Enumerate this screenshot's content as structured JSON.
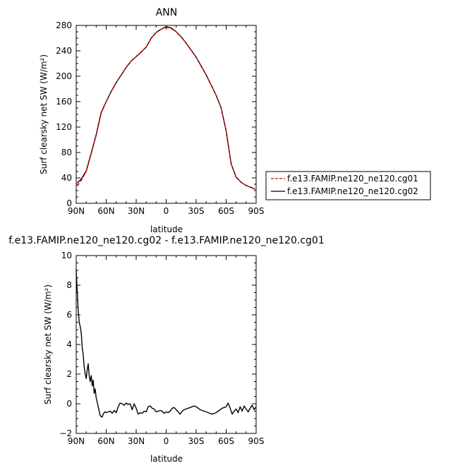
{
  "chart_data": [
    {
      "type": "line",
      "title": "ANN",
      "xlabel": "latitude",
      "ylabel": "Surf clearsky net SW (W/m²)",
      "xlim": [
        90,
        -90
      ],
      "x_direction": "90N on left to 90S on right",
      "ylim": [
        0,
        280
      ],
      "xticks": [
        90,
        60,
        30,
        0,
        -30,
        -60,
        -90
      ],
      "xtick_labels": [
        "90N",
        "60N",
        "30N",
        "0",
        "30S",
        "60S",
        "90S"
      ],
      "yticks": [
        0,
        40,
        80,
        120,
        160,
        200,
        240,
        280
      ],
      "ytick_labels": [
        "0",
        "40",
        "80",
        "120",
        "160",
        "200",
        "240",
        "280"
      ],
      "legend_position": "right",
      "series": [
        {
          "name": "f.e13.FAMIP.ne120_ne120.cg01",
          "color": "#cc0000",
          "dash": "dashed",
          "x": [
            89,
            85,
            80,
            75,
            70,
            65,
            60,
            55,
            50,
            45,
            40,
            35,
            30,
            25,
            20,
            15,
            10,
            5,
            0,
            -5,
            -10,
            -15,
            -20,
            -25,
            -30,
            -35,
            -40,
            -45,
            -50,
            -55,
            -60,
            -65,
            -70,
            -72,
            -75,
            -80,
            -85,
            -89
          ],
          "y": [
            27,
            36,
            50,
            78,
            107,
            142,
            160,
            176,
            190,
            202,
            214,
            224,
            231,
            238,
            246,
            260,
            269,
            274,
            277,
            275,
            270,
            262,
            252,
            241,
            230,
            216,
            202,
            186,
            170,
            150,
            114,
            62,
            41,
            38,
            33,
            28,
            25,
            22
          ]
        },
        {
          "name": "f.e13.FAMIP.ne120_ne120.cg02",
          "color": "#000000",
          "dash": "solid",
          "x": [
            89,
            85,
            80,
            75,
            70,
            65,
            60,
            55,
            50,
            45,
            40,
            35,
            30,
            25,
            20,
            15,
            10,
            5,
            0,
            -5,
            -10,
            -15,
            -20,
            -25,
            -30,
            -35,
            -40,
            -45,
            -50,
            -55,
            -60,
            -65,
            -70,
            -72,
            -75,
            -80,
            -85,
            -89
          ],
          "y": [
            32,
            38,
            51,
            79,
            108,
            143,
            160,
            176,
            190,
            202,
            214,
            224,
            231,
            238,
            246,
            260,
            269,
            274,
            278,
            276,
            270,
            262,
            252,
            241,
            230,
            216,
            202,
            186,
            170,
            150,
            114,
            62,
            41,
            38,
            33,
            28,
            25,
            22
          ]
        }
      ]
    },
    {
      "type": "line",
      "title": "f.e13.FAMIP.ne120_ne120.cg02 - f.e13.FAMIP.ne120_ne120.cg01",
      "xlabel": "latitude",
      "ylabel": "Surf clearsky net SW (W/m²)",
      "xlim": [
        90,
        -90
      ],
      "ylim": [
        -2,
        10
      ],
      "xticks": [
        90,
        60,
        30,
        0,
        -30,
        -60,
        -90
      ],
      "xtick_labels": [
        "90N",
        "60N",
        "30N",
        "0",
        "30S",
        "60S",
        "90S"
      ],
      "yticks": [
        -2,
        0,
        2,
        4,
        6,
        8,
        10
      ],
      "ytick_labels": [
        "−2",
        "0",
        "2",
        "4",
        "6",
        "8",
        "10"
      ],
      "series": [
        {
          "color": "#000000",
          "dash": "solid",
          "x": [
            90,
            89,
            88,
            87,
            86,
            85,
            84,
            83,
            82,
            81,
            80,
            79,
            78,
            77,
            76,
            75,
            74,
            73,
            72,
            71,
            70,
            69,
            68,
            67,
            66,
            65,
            64,
            63,
            62,
            61,
            60,
            58,
            56,
            54,
            52,
            50,
            48,
            46,
            44,
            42,
            40,
            38,
            36,
            34,
            32,
            30,
            28,
            26,
            24,
            22,
            20,
            18,
            16,
            14,
            12,
            10,
            8,
            6,
            4,
            2,
            0,
            -2,
            -4,
            -6,
            -8,
            -10,
            -12,
            -14,
            -16,
            -18,
            -20,
            -22,
            -24,
            -26,
            -28,
            -30,
            -32,
            -34,
            -36,
            -38,
            -40,
            -42,
            -44,
            -46,
            -48,
            -50,
            -52,
            -54,
            -56,
            -58,
            -60,
            -62,
            -64,
            -66,
            -68,
            -70,
            -72,
            -74,
            -76,
            -78,
            -80,
            -82,
            -84,
            -86,
            -88,
            -90
          ],
          "y": [
            9.0,
            7.6,
            6.3,
            5.5,
            5.2,
            4.8,
            3.8,
            3.3,
            2.5,
            2.0,
            1.7,
            2.3,
            2.7,
            1.9,
            1.5,
            1.9,
            1.2,
            1.6,
            0.7,
            1.0,
            0.4,
            0.1,
            -0.2,
            -0.5,
            -0.8,
            -0.85,
            -0.9,
            -0.7,
            -0.6,
            -0.55,
            -0.6,
            -0.55,
            -0.5,
            -0.65,
            -0.45,
            -0.6,
            -0.2,
            0.05,
            0.0,
            -0.1,
            0.05,
            -0.05,
            0.0,
            -0.4,
            0.0,
            -0.3,
            -0.7,
            -0.6,
            -0.65,
            -0.5,
            -0.55,
            -0.2,
            -0.15,
            -0.3,
            -0.35,
            -0.55,
            -0.5,
            -0.45,
            -0.5,
            -0.65,
            -0.55,
            -0.6,
            -0.5,
            -0.3,
            -0.25,
            -0.4,
            -0.55,
            -0.7,
            -0.5,
            -0.4,
            -0.35,
            -0.3,
            -0.25,
            -0.2,
            -0.15,
            -0.2,
            -0.3,
            -0.4,
            -0.45,
            -0.5,
            -0.55,
            -0.6,
            -0.65,
            -0.7,
            -0.65,
            -0.6,
            -0.5,
            -0.4,
            -0.3,
            -0.25,
            -0.2,
            0.05,
            -0.3,
            -0.7,
            -0.5,
            -0.35,
            -0.6,
            -0.2,
            -0.5,
            -0.15,
            -0.35,
            -0.55,
            -0.3,
            -0.1,
            -0.4,
            -0.2
          ]
        }
      ]
    }
  ]
}
